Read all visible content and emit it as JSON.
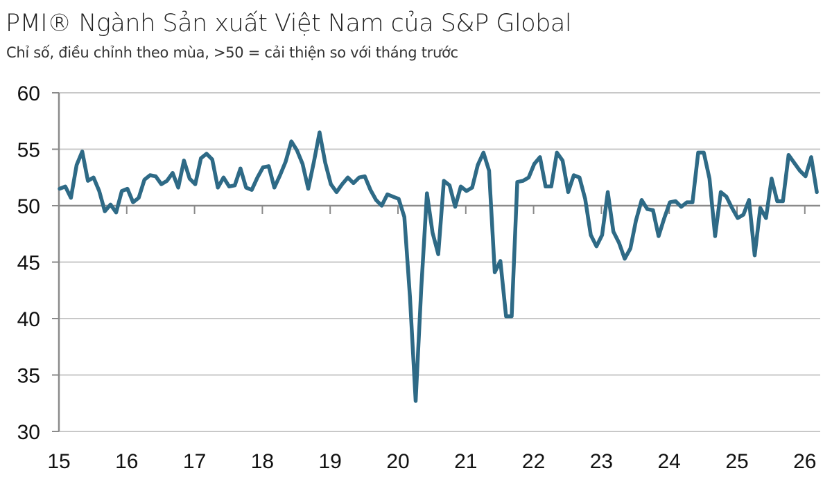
{
  "title": "PMI® Ngành Sản xuất Việt Nam của S&P Global",
  "subtitle": "Chỉ số, điều chỉnh theo mùa, >50 = cải thiện so với tháng trước",
  "colors": {
    "line": "#2e6a86",
    "grid": "#c8c8c8",
    "axis": "#8a8a8a"
  },
  "chart_data": {
    "type": "line",
    "title": "PMI® Ngành Sản xuất Việt Nam của S&P Global",
    "subtitle": "Chỉ số, điều chỉnh theo mùa, >50 = cải thiện so với tháng trước",
    "xlabel": "",
    "ylabel": "",
    "ylim": [
      30,
      60
    ],
    "yticks": [
      "30",
      "35",
      "40",
      "45",
      "50",
      "55",
      "60"
    ],
    "xticks": [
      "15",
      "16",
      "17",
      "18",
      "19",
      "20",
      "21",
      "22",
      "23",
      "24",
      "25",
      "26"
    ],
    "x_start": "2015-01",
    "x_end": "2026-03",
    "grid": true,
    "reference_line": 50,
    "series": [
      {
        "name": "PMI",
        "values": [
          51.5,
          51.7,
          50.7,
          53.6,
          54.8,
          52.2,
          52.5,
          51.3,
          49.5,
          50.1,
          49.4,
          51.3,
          51.5,
          50.3,
          50.7,
          52.3,
          52.7,
          52.6,
          51.9,
          52.2,
          52.9,
          51.6,
          54.0,
          52.4,
          51.9,
          54.2,
          54.6,
          54.1,
          51.6,
          52.5,
          51.7,
          51.8,
          53.3,
          51.6,
          51.4,
          52.5,
          53.4,
          53.5,
          51.6,
          52.7,
          53.9,
          55.7,
          54.9,
          53.7,
          51.5,
          53.9,
          56.5,
          53.8,
          51.9,
          51.2,
          51.9,
          52.5,
          52.0,
          52.5,
          52.6,
          51.4,
          50.5,
          50.0,
          51.0,
          50.8,
          50.6,
          49.0,
          41.9,
          32.7,
          42.7,
          51.1,
          47.6,
          45.7,
          52.2,
          51.8,
          49.9,
          51.7,
          51.3,
          51.6,
          53.6,
          54.7,
          53.1,
          44.1,
          45.1,
          40.2,
          40.2,
          52.1,
          52.2,
          52.5,
          53.7,
          54.3,
          51.7,
          51.7,
          54.7,
          54.0,
          51.2,
          52.7,
          52.5,
          50.6,
          47.4,
          46.4,
          47.4,
          51.2,
          47.7,
          46.7,
          45.3,
          46.2,
          48.7,
          50.5,
          49.7,
          49.6,
          47.3,
          48.9,
          50.3,
          50.4,
          49.9,
          50.3,
          50.3,
          54.7,
          54.7,
          52.4,
          47.3,
          51.2,
          50.8,
          49.8,
          48.9,
          49.2,
          50.5,
          45.6,
          49.8,
          48.9,
          52.4,
          50.4,
          50.4,
          54.5,
          53.8,
          53.1,
          52.6,
          54.3,
          51.2
        ]
      }
    ]
  }
}
